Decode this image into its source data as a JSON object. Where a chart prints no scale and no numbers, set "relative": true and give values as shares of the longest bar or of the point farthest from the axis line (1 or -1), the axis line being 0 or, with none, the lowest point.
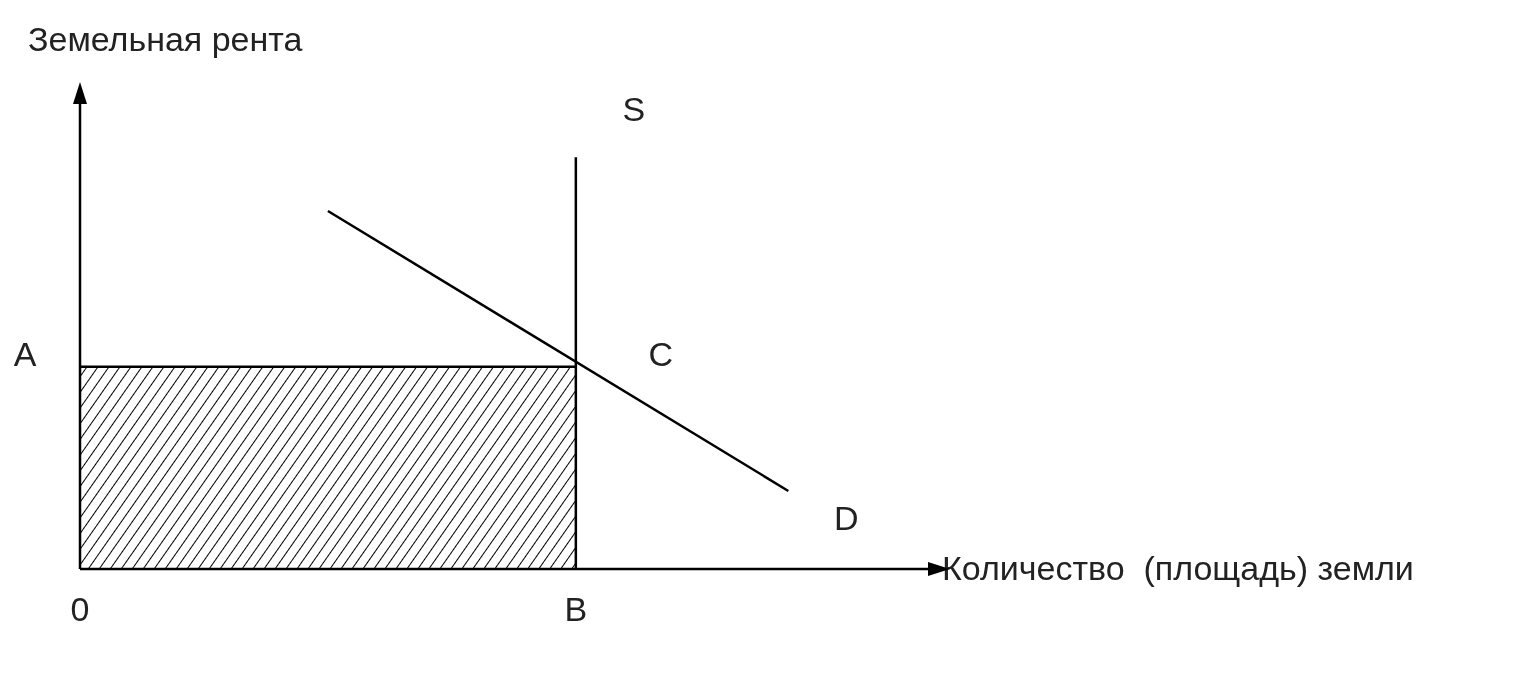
{
  "chart_data": {
    "type": "line",
    "relative": true,
    "ylabel": "Земельная рента",
    "xlabel": "Количество  (площадь) земли",
    "grid": false,
    "legend": false,
    "marker": "none",
    "categories": [
      "0",
      null,
      null,
      null,
      null,
      null,
      null,
      null,
      null,
      null,
      null,
      null,
      null,
      null,
      "B",
      null,
      null,
      null,
      null,
      null,
      null,
      null,
      null,
      null,
      null
    ],
    "series": [
      {
        "type": "area",
        "color": "#000000",
        "values": [
          0.565,
          0.565,
          0.565,
          0.565,
          0.565,
          0.565,
          0.565,
          0.565,
          0.565,
          0.565,
          0.565,
          0.565,
          0.565,
          0.565,
          0.565,
          null,
          null,
          null,
          null,
          null,
          null,
          null,
          null,
          null,
          null
        ]
      },
      {
        "name": "D",
        "color": "#000000",
        "values": [
          null,
          null,
          null,
          null,
          null,
          null,
          null,
          1,
          null,
          null,
          null,
          null,
          null,
          null,
          null,
          null,
          null,
          null,
          null,
          null,
          0.218,
          null,
          null,
          null,
          null
        ]
      }
    ],
    "ref_lines": [
      {
        "axis": "x",
        "value": "B",
        "label": "S",
        "color": "#000000"
      }
    ],
    "annotations": [
      {
        "text": "A",
        "x": "0",
        "y": 0.565
      },
      {
        "text": "C",
        "x": "B",
        "y": 0.565
      }
    ]
  }
}
